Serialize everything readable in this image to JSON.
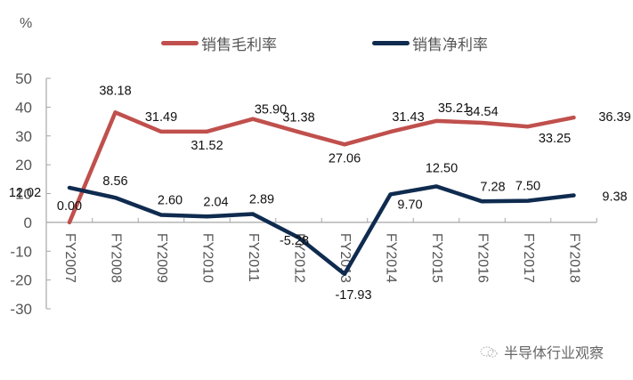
{
  "chart_data": {
    "type": "line",
    "title": "",
    "unit_label": "%",
    "xlabel": "",
    "ylabel": "%",
    "ylim": [
      -30,
      50
    ],
    "yticks": [
      50,
      40,
      30,
      20,
      10,
      0,
      -10,
      -20,
      -30
    ],
    "grid": false,
    "legend_position": "top",
    "categories": [
      "FY2007",
      "FY2008",
      "FY2009",
      "FY2010",
      "FY2011",
      "FY2012",
      "FY2013",
      "FY2014",
      "FY2015",
      "FY2016",
      "FY2017",
      "FY2018"
    ],
    "series": [
      {
        "name": "销售毛利率",
        "color": "#C0504D",
        "values": [
          0.0,
          38.18,
          31.49,
          31.52,
          35.9,
          31.38,
          27.06,
          31.43,
          35.21,
          34.54,
          33.25,
          36.39
        ]
      },
      {
        "name": "销售净利率",
        "color": "#0F2B4F",
        "values": [
          12.02,
          8.56,
          2.6,
          2.04,
          2.89,
          -5.28,
          -17.93,
          9.7,
          12.5,
          7.28,
          7.5,
          9.38
        ]
      }
    ]
  },
  "legend": {
    "gross": "销售毛利率",
    "net": "销售净利率"
  },
  "watermark": {
    "text": "半导体行业观察"
  }
}
